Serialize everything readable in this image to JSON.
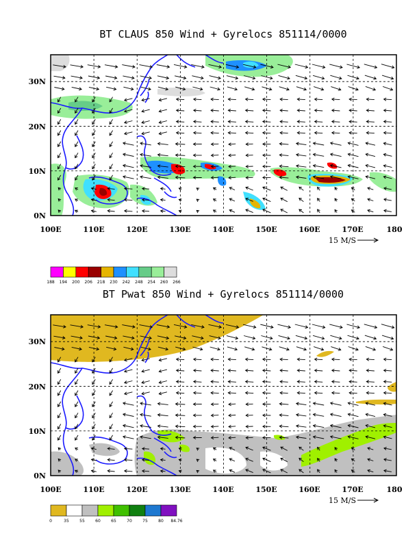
{
  "chart_data": [
    {
      "type": "heatmap",
      "title": "BT CLAUS 850 Wind + Gyrelocs 851114/0000",
      "x_ticks": [
        "100E",
        "110E",
        "120E",
        "130E",
        "140E",
        "150E",
        "160E",
        "170E",
        "180"
      ],
      "y_ticks": [
        "0N",
        "10N",
        "20N",
        "30N"
      ],
      "xlim": [
        100,
        180
      ],
      "ylim": [
        0,
        36
      ],
      "grid": true,
      "vector_reference": "15 M/S",
      "colorbar": {
        "levels": [
          "188",
          "194",
          "200",
          "206",
          "218",
          "230",
          "242",
          "248",
          "254",
          "260",
          "266"
        ],
        "colors": [
          "#ff00ff",
          "#ffff00",
          "#ff0000",
          "#990000",
          "#e6b400",
          "#1e90ff",
          "#40e0ff",
          "#66cc88",
          "#99ee99",
          "#dddddd"
        ]
      }
    },
    {
      "type": "heatmap",
      "title": "BT Pwat 850 Wind + Gyrelocs 851114/0000",
      "x_ticks": [
        "100E",
        "110E",
        "120E",
        "130E",
        "140E",
        "150E",
        "160E",
        "170E",
        "180"
      ],
      "y_ticks": [
        "0N",
        "10N",
        "20N",
        "30N"
      ],
      "xlim": [
        100,
        180
      ],
      "ylim": [
        0,
        36
      ],
      "grid": true,
      "vector_reference": "15 M/S",
      "colorbar": {
        "levels": [
          "0",
          "35",
          "55",
          "60",
          "65",
          "70",
          "75",
          "80",
          "84.76"
        ],
        "colors": [
          "#e0b820",
          "#ffffff",
          "#c0c0c0",
          "#a0f000",
          "#40c000",
          "#108010",
          "#1e78d0",
          "#8010c0"
        ]
      }
    }
  ]
}
